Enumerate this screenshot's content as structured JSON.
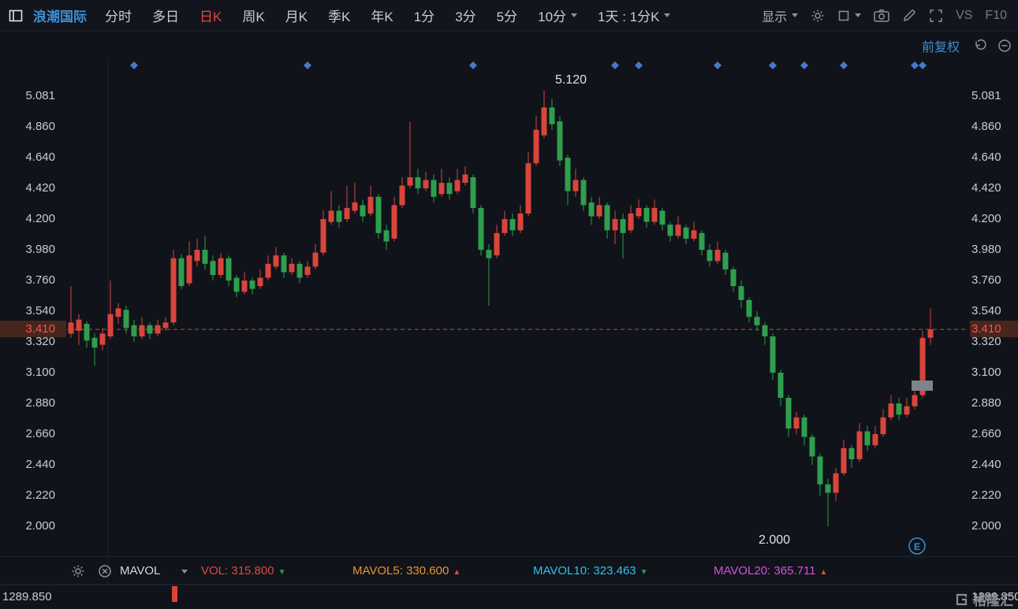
{
  "toolbar": {
    "stock_name": "浪潮国际",
    "tabs": [
      {
        "label": "分时",
        "active": false,
        "caret": false
      },
      {
        "label": "多日",
        "active": false,
        "caret": false
      },
      {
        "label": "日K",
        "active": true,
        "caret": false
      },
      {
        "label": "周K",
        "active": false,
        "caret": false
      },
      {
        "label": "月K",
        "active": false,
        "caret": false
      },
      {
        "label": "季K",
        "active": false,
        "caret": false
      },
      {
        "label": "年K",
        "active": false,
        "caret": false
      },
      {
        "label": "1分",
        "active": false,
        "caret": false
      },
      {
        "label": "3分",
        "active": false,
        "caret": false
      },
      {
        "label": "5分",
        "active": false,
        "caret": false
      },
      {
        "label": "10分",
        "active": false,
        "caret": true
      },
      {
        "label": "1天 : 1分K",
        "active": false,
        "caret": true
      }
    ],
    "display_label": "显示",
    "vs_label": "VS",
    "f10_label": "F10"
  },
  "adjust_label": "前复权",
  "chart_data": {
    "type": "candlestick",
    "title": "浪潮国际 日K 前复权",
    "y_ticks": [
      5.081,
      4.86,
      4.64,
      4.42,
      4.2,
      3.98,
      3.76,
      3.54,
      3.32,
      3.1,
      2.88,
      2.66,
      2.44,
      2.22,
      2.0
    ],
    "current_price": 3.41,
    "high_label": {
      "value": "5.120",
      "candle_index": 60
    },
    "low_label": {
      "value": "2.000",
      "candle_index": 96
    },
    "event_badge": "E",
    "event_marker_indices": [
      8,
      30,
      51,
      69,
      72,
      82,
      89,
      93,
      98,
      107,
      108
    ],
    "colors": {
      "up": "#d9453c",
      "down": "#2f9e4d",
      "dashed_line": "#c2512c",
      "marker": "#4679cc",
      "badge_blue": "#3d8fd1"
    },
    "candles_key": "[open, high, low, close]",
    "candles": [
      [
        3.38,
        3.72,
        3.35,
        3.46
      ],
      [
        3.4,
        3.52,
        3.3,
        3.48
      ],
      [
        3.45,
        3.47,
        3.28,
        3.33
      ],
      [
        3.35,
        3.38,
        3.15,
        3.28
      ],
      [
        3.3,
        3.42,
        3.26,
        3.38
      ],
      [
        3.36,
        3.76,
        3.34,
        3.52
      ],
      [
        3.5,
        3.6,
        3.45,
        3.56
      ],
      [
        3.55,
        3.58,
        3.38,
        3.42
      ],
      [
        3.44,
        3.48,
        3.32,
        3.36
      ],
      [
        3.36,
        3.5,
        3.34,
        3.44
      ],
      [
        3.44,
        3.46,
        3.34,
        3.38
      ],
      [
        3.38,
        3.48,
        3.36,
        3.44
      ],
      [
        3.42,
        3.5,
        3.4,
        3.46
      ],
      [
        3.46,
        3.98,
        3.44,
        3.92
      ],
      [
        3.92,
        3.95,
        3.7,
        3.72
      ],
      [
        3.74,
        4.04,
        3.72,
        3.94
      ],
      [
        3.9,
        4.06,
        3.86,
        3.98
      ],
      [
        3.98,
        4.08,
        3.84,
        3.88
      ],
      [
        3.9,
        3.94,
        3.76,
        3.8
      ],
      [
        3.8,
        3.96,
        3.78,
        3.92
      ],
      [
        3.92,
        3.94,
        3.72,
        3.76
      ],
      [
        3.78,
        3.8,
        3.64,
        3.68
      ],
      [
        3.68,
        3.82,
        3.66,
        3.76
      ],
      [
        3.76,
        3.78,
        3.66,
        3.7
      ],
      [
        3.72,
        3.84,
        3.7,
        3.78
      ],
      [
        3.78,
        3.94,
        3.76,
        3.88
      ],
      [
        3.86,
        4.0,
        3.84,
        3.94
      ],
      [
        3.94,
        3.96,
        3.78,
        3.82
      ],
      [
        3.82,
        3.92,
        3.8,
        3.88
      ],
      [
        3.88,
        3.9,
        3.74,
        3.78
      ],
      [
        3.8,
        3.9,
        3.78,
        3.86
      ],
      [
        3.86,
        4.02,
        3.84,
        3.96
      ],
      [
        3.96,
        4.26,
        3.94,
        4.2
      ],
      [
        4.18,
        4.4,
        4.16,
        4.26
      ],
      [
        4.26,
        4.3,
        4.14,
        4.18
      ],
      [
        4.2,
        4.44,
        4.18,
        4.28
      ],
      [
        4.26,
        4.46,
        4.24,
        4.32
      ],
      [
        4.3,
        4.34,
        4.18,
        4.22
      ],
      [
        4.24,
        4.44,
        4.22,
        4.36
      ],
      [
        4.36,
        4.38,
        4.06,
        4.1
      ],
      [
        4.12,
        4.16,
        3.98,
        4.04
      ],
      [
        4.06,
        4.36,
        4.04,
        4.3
      ],
      [
        4.3,
        4.5,
        4.28,
        4.44
      ],
      [
        4.44,
        4.9,
        4.42,
        4.5
      ],
      [
        4.5,
        4.56,
        4.38,
        4.42
      ],
      [
        4.42,
        4.54,
        4.4,
        4.48
      ],
      [
        4.48,
        4.52,
        4.32,
        4.36
      ],
      [
        4.38,
        4.56,
        4.36,
        4.46
      ],
      [
        4.46,
        4.5,
        4.34,
        4.38
      ],
      [
        4.4,
        4.56,
        4.38,
        4.48
      ],
      [
        4.46,
        4.58,
        4.44,
        4.52
      ],
      [
        4.5,
        4.52,
        4.24,
        4.28
      ],
      [
        4.28,
        4.3,
        3.94,
        3.98
      ],
      [
        3.98,
        4.02,
        3.58,
        3.92
      ],
      [
        3.94,
        4.16,
        3.92,
        4.1
      ],
      [
        4.1,
        4.26,
        4.08,
        4.2
      ],
      [
        4.2,
        4.24,
        4.08,
        4.12
      ],
      [
        4.12,
        4.3,
        4.1,
        4.24
      ],
      [
        4.24,
        4.68,
        4.22,
        4.6
      ],
      [
        4.6,
        4.94,
        4.58,
        4.84
      ],
      [
        4.8,
        5.12,
        4.78,
        5.0
      ],
      [
        5.0,
        5.06,
        4.84,
        4.88
      ],
      [
        4.9,
        4.94,
        4.58,
        4.62
      ],
      [
        4.64,
        4.66,
        4.3,
        4.4
      ],
      [
        4.4,
        4.56,
        4.36,
        4.48
      ],
      [
        4.48,
        4.5,
        4.26,
        4.3
      ],
      [
        4.32,
        4.36,
        4.16,
        4.22
      ],
      [
        4.22,
        4.36,
        4.2,
        4.3
      ],
      [
        4.3,
        4.32,
        4.06,
        4.12
      ],
      [
        4.12,
        4.26,
        4.02,
        4.2
      ],
      [
        4.2,
        4.24,
        3.92,
        4.1
      ],
      [
        4.12,
        4.3,
        4.1,
        4.24
      ],
      [
        4.22,
        4.34,
        4.2,
        4.28
      ],
      [
        4.28,
        4.3,
        4.14,
        4.18
      ],
      [
        4.18,
        4.34,
        4.16,
        4.28
      ],
      [
        4.26,
        4.28,
        4.12,
        4.16
      ],
      [
        4.16,
        4.18,
        4.04,
        4.08
      ],
      [
        4.08,
        4.22,
        4.06,
        4.16
      ],
      [
        4.14,
        4.16,
        4.02,
        4.06
      ],
      [
        4.06,
        4.18,
        4.04,
        4.12
      ],
      [
        4.1,
        4.12,
        3.94,
        3.98
      ],
      [
        3.98,
        4.02,
        3.86,
        3.9
      ],
      [
        3.9,
        4.04,
        3.88,
        3.98
      ],
      [
        3.96,
        3.98,
        3.8,
        3.84
      ],
      [
        3.84,
        3.86,
        3.68,
        3.72
      ],
      [
        3.72,
        3.76,
        3.56,
        3.62
      ],
      [
        3.62,
        3.64,
        3.46,
        3.5
      ],
      [
        3.5,
        3.54,
        3.4,
        3.44
      ],
      [
        3.44,
        3.46,
        3.3,
        3.36
      ],
      [
        3.36,
        3.38,
        3.05,
        3.1
      ],
      [
        3.1,
        3.12,
        2.86,
        2.92
      ],
      [
        2.92,
        2.94,
        2.64,
        2.7
      ],
      [
        2.7,
        2.82,
        2.66,
        2.78
      ],
      [
        2.78,
        2.8,
        2.58,
        2.64
      ],
      [
        2.64,
        2.66,
        2.44,
        2.5
      ],
      [
        2.5,
        2.52,
        2.22,
        2.3
      ],
      [
        2.3,
        2.34,
        2.0,
        2.24
      ],
      [
        2.24,
        2.42,
        2.18,
        2.38
      ],
      [
        2.38,
        2.62,
        2.36,
        2.56
      ],
      [
        2.56,
        2.58,
        2.42,
        2.48
      ],
      [
        2.48,
        2.74,
        2.46,
        2.68
      ],
      [
        2.68,
        2.72,
        2.54,
        2.58
      ],
      [
        2.58,
        2.72,
        2.56,
        2.66
      ],
      [
        2.66,
        2.84,
        2.64,
        2.78
      ],
      [
        2.78,
        2.94,
        2.76,
        2.88
      ],
      [
        2.88,
        2.92,
        2.76,
        2.8
      ],
      [
        2.8,
        2.92,
        2.78,
        2.86
      ],
      [
        2.86,
        3.0,
        2.84,
        2.94
      ],
      [
        2.94,
        3.4,
        2.92,
        3.35
      ],
      [
        3.35,
        3.56,
        3.3,
        3.41
      ]
    ]
  },
  "indicator_bar": {
    "name": "MAVOL",
    "items": [
      {
        "key": "vol",
        "label": "VOL:",
        "value": "315.800",
        "color": "#e0493e",
        "arrow": "down",
        "arrow_color": "#2f9e4d"
      },
      {
        "key": "mavol5",
        "label": "MAVOL5:",
        "value": "330.600",
        "color": "#e8952e",
        "arrow": "up",
        "arrow_color": "#e0493e"
      },
      {
        "key": "mavol10",
        "label": "MAVOL10:",
        "value": "323.463",
        "color": "#2ec2e8",
        "arrow": "down",
        "arrow_color": "#2f9e4d"
      },
      {
        "key": "mavol20",
        "label": "MAVOL20:",
        "value": "365.711",
        "color": "#d94fd9",
        "arrow": "up",
        "arrow_color": "#e0493e"
      }
    ]
  },
  "volume_axis": {
    "left": "1289.850",
    "right": "1289.850"
  },
  "watermark": "格隆汇"
}
